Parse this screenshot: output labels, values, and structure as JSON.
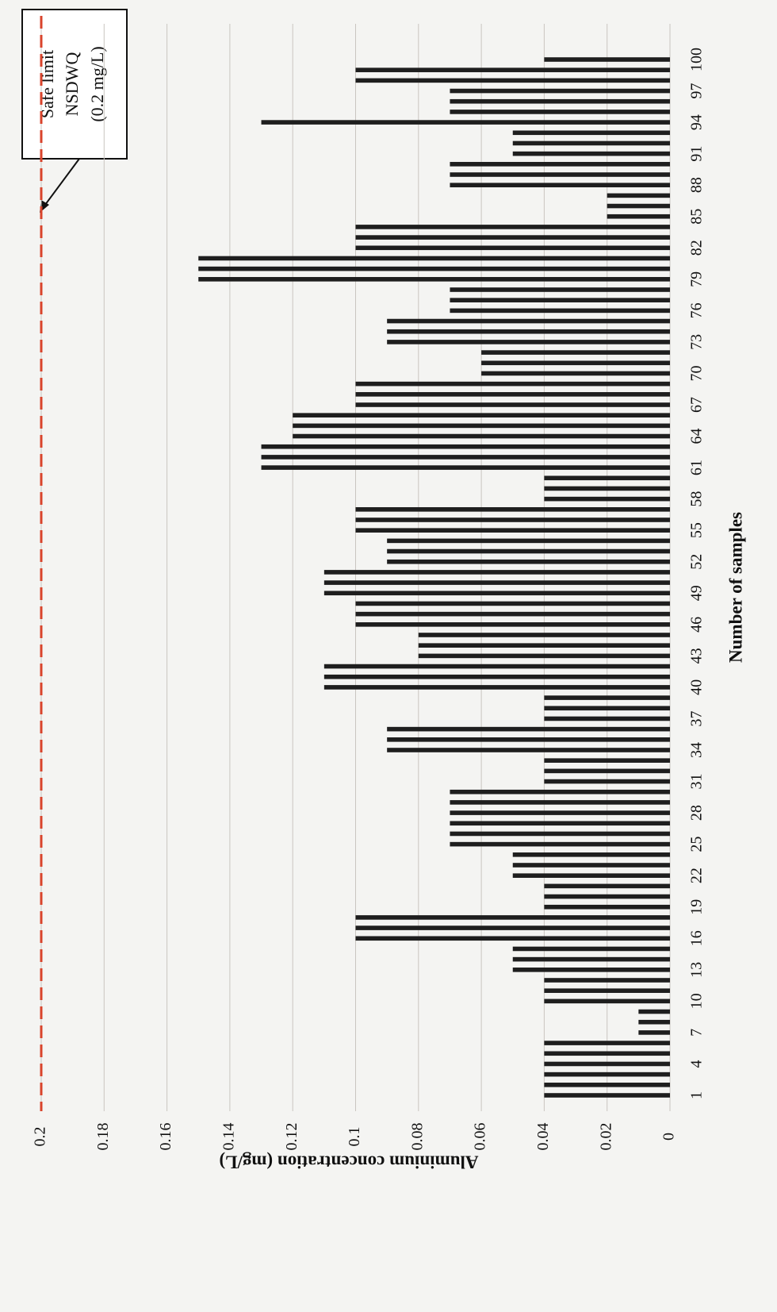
{
  "chart_data": {
    "type": "bar",
    "orientation": "rotated",
    "ylabel": "Aluminium concentration (mg/L)",
    "xlabel": "Number of samples",
    "annotation": [
      "Safe limit",
      "NSDWQ",
      "(0.2 mg/L)"
    ],
    "reference_line": {
      "value": 0.2,
      "color": "#d9432b"
    },
    "color": "#1e1e1e",
    "grid": true,
    "ylim": [
      0,
      0.2
    ],
    "yticks": [
      0,
      0.02,
      0.04,
      0.06,
      0.08,
      0.1,
      0.12,
      0.14,
      0.16,
      0.18,
      0.2
    ],
    "categories": [
      "1",
      null,
      null,
      "4",
      null,
      null,
      "7",
      null,
      null,
      "10",
      null,
      null,
      "13",
      null,
      null,
      "16",
      null,
      null,
      "19",
      null,
      null,
      "22",
      null,
      null,
      "25",
      null,
      null,
      "28",
      null,
      null,
      "31",
      null,
      null,
      "34",
      null,
      null,
      "37",
      null,
      null,
      "40",
      null,
      null,
      "43",
      null,
      null,
      "46",
      null,
      null,
      "49",
      null,
      null,
      "52",
      null,
      null,
      "55",
      null,
      null,
      "58",
      null,
      null,
      "61",
      null,
      null,
      "64",
      null,
      null,
      "67",
      null,
      null,
      "70",
      null,
      null,
      "73",
      null,
      null,
      "76",
      null,
      null,
      "79",
      null,
      null,
      "82",
      null,
      null,
      "85",
      null,
      null,
      "88",
      null,
      null,
      "91",
      null,
      null,
      "94",
      null,
      null,
      "97",
      null,
      null,
      "100"
    ],
    "values": [
      0.04,
      0.04,
      0.04,
      0.04,
      0.04,
      0.04,
      0.01,
      0.01,
      0.01,
      0.04,
      0.04,
      0.04,
      0.05,
      0.05,
      0.05,
      0.1,
      0.1,
      0.1,
      0.04,
      0.04,
      0.04,
      0.05,
      0.05,
      0.05,
      0.07,
      0.07,
      0.07,
      0.07,
      0.07,
      0.07,
      0.04,
      0.04,
      0.04,
      0.09,
      0.09,
      0.09,
      0.04,
      0.04,
      0.04,
      0.11,
      0.11,
      0.11,
      0.08,
      0.08,
      0.08,
      0.1,
      0.1,
      0.1,
      0.11,
      0.11,
      0.11,
      0.09,
      0.09,
      0.09,
      0.1,
      0.1,
      0.1,
      0.04,
      0.04,
      0.04,
      0.13,
      0.13,
      0.13,
      0.12,
      0.12,
      0.12,
      0.1,
      0.1,
      0.1,
      0.06,
      0.06,
      0.06,
      0.09,
      0.09,
      0.09,
      0.07,
      0.07,
      0.07,
      0.15,
      0.15,
      0.15,
      0.1,
      0.1,
      0.1,
      0.02,
      0.02,
      0.02,
      0.07,
      0.07,
      0.07,
      0.05,
      0.05,
      0.05,
      0.13,
      0.07,
      0.07,
      0.07,
      0.1,
      0.1,
      0.04
    ]
  }
}
